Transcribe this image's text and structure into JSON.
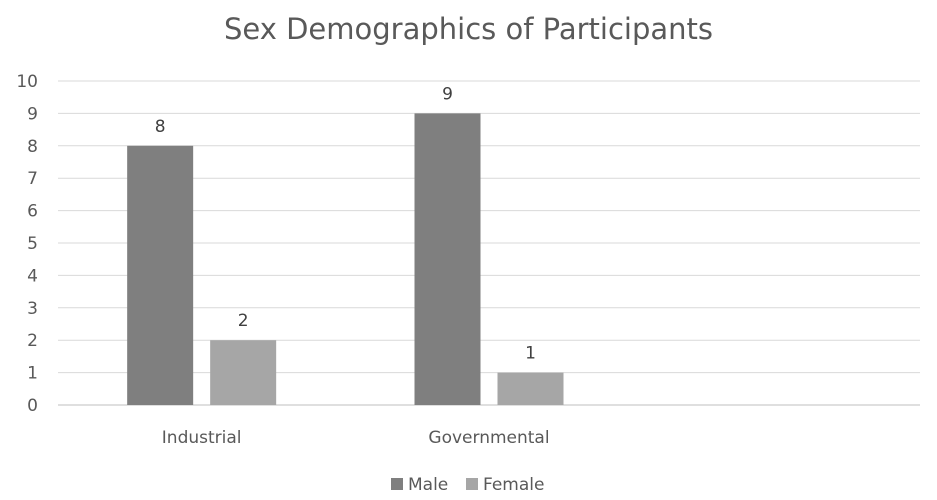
{
  "chart_data": {
    "type": "bar",
    "title": "Sex Demographics of Participants",
    "xlabel": "",
    "ylabel": "",
    "categories": [
      "Industrial",
      "Governmental",
      ""
    ],
    "series": [
      {
        "name": "Male",
        "values": [
          8,
          9,
          null
        ],
        "color": "#7f7f7f"
      },
      {
        "name": "Female",
        "values": [
          2,
          1,
          null
        ],
        "color": "#a6a6a6"
      }
    ],
    "ylim": [
      0,
      10
    ],
    "yticks": [
      0,
      1,
      2,
      3,
      4,
      5,
      6,
      7,
      8,
      9,
      10
    ],
    "grid": true,
    "legend": "bottom",
    "data_labels": true
  }
}
